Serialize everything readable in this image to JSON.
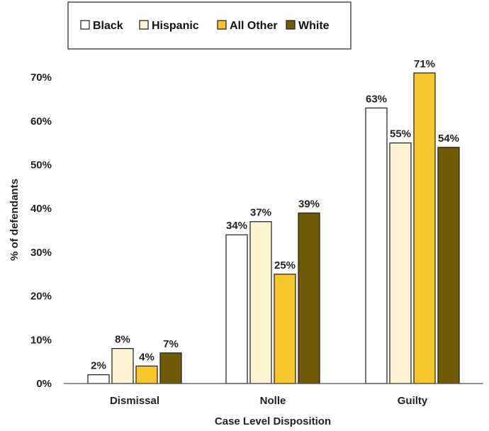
{
  "chart_data": {
    "type": "bar",
    "title": "",
    "xlabel": "Case Level Disposition",
    "ylabel": "% of defendants",
    "categories": [
      "Dismissal",
      "Nolle",
      "Guilty"
    ],
    "series": [
      {
        "name": "Black",
        "values": [
          2,
          34,
          63
        ],
        "labels": [
          "2%",
          "34%",
          "63%"
        ],
        "color": "#ffffff"
      },
      {
        "name": "Hispanic",
        "values": [
          8,
          37,
          55
        ],
        "labels": [
          "8%",
          "37%",
          "55%"
        ],
        "color": "#fdf3d2"
      },
      {
        "name": "All Other",
        "values": [
          4,
          25,
          71
        ],
        "labels": [
          "4%",
          "25%",
          "71%"
        ],
        "color": "#f6c52a"
      },
      {
        "name": "White",
        "values": [
          7,
          39,
          54
        ],
        "labels": [
          "7%",
          "39%",
          "54%"
        ],
        "color": "#705a08"
      }
    ],
    "ylim": [
      0,
      70
    ],
    "yticks": [
      0,
      10,
      20,
      30,
      40,
      50,
      60,
      70
    ],
    "ytick_labels": [
      "0%",
      "10%",
      "20%",
      "30%",
      "40%",
      "50%",
      "60%",
      "70%"
    ],
    "grid": false,
    "legend_position": "top-left",
    "bar_stroke_color": "#1a1a1a"
  }
}
